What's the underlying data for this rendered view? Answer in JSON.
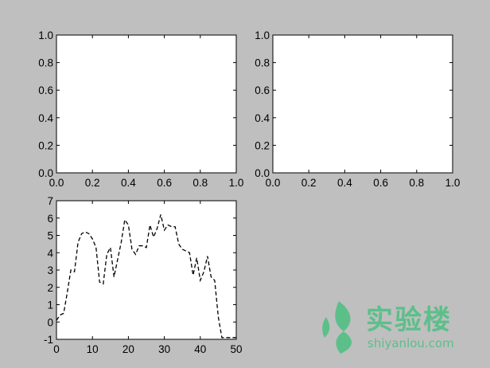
{
  "chart_data": [
    {
      "type": "line",
      "subplot": "top-left",
      "xlim": [
        0,
        1
      ],
      "ylim": [
        0,
        1
      ],
      "xticks": [
        "0.0",
        "0.2",
        "0.4",
        "0.6",
        "0.8",
        "1.0"
      ],
      "yticks": [
        "0.0",
        "0.2",
        "0.4",
        "0.6",
        "0.8",
        "1.0"
      ],
      "series": []
    },
    {
      "type": "line",
      "subplot": "top-right",
      "xlim": [
        0,
        1
      ],
      "ylim": [
        0,
        1
      ],
      "xticks": [
        "0.0",
        "0.2",
        "0.4",
        "0.6",
        "0.8",
        "1.0"
      ],
      "yticks": [
        "0.0",
        "0.2",
        "0.4",
        "0.6",
        "0.8",
        "1.0"
      ],
      "series": []
    },
    {
      "type": "line",
      "subplot": "bottom-left",
      "xlim": [
        0,
        50
      ],
      "ylim": [
        -1,
        7
      ],
      "xticks": [
        "0",
        "10",
        "20",
        "30",
        "40",
        "50"
      ],
      "yticks": [
        "-1",
        "0",
        "1",
        "2",
        "3",
        "4",
        "5",
        "6",
        "7"
      ],
      "line_style": "dashed",
      "line_color": "#000000",
      "series": [
        {
          "x": [
            0,
            1,
            2,
            3,
            4,
            5,
            6,
            7,
            8,
            9,
            10,
            11,
            12,
            13,
            14,
            15,
            16,
            17,
            18,
            19,
            20,
            21,
            22,
            23,
            24,
            25,
            26,
            27,
            28,
            29,
            30,
            31,
            32,
            33,
            34,
            35,
            36,
            37,
            38,
            39,
            40,
            41,
            42,
            43,
            44,
            45,
            46,
            47,
            48,
            49,
            50
          ],
          "values": [
            0.1,
            0.4,
            0.5,
            1.7,
            3.0,
            2.9,
            4.6,
            5.1,
            5.2,
            5.1,
            4.8,
            4.3,
            2.3,
            2.2,
            3.9,
            4.3,
            2.6,
            3.6,
            4.6,
            5.9,
            5.6,
            4.2,
            3.9,
            4.4,
            4.4,
            4.3,
            5.6,
            4.9,
            5.4,
            6.2,
            5.3,
            5.6,
            5.5,
            5.5,
            4.5,
            4.2,
            4.1,
            4.0,
            2.7,
            3.7,
            2.4,
            2.9,
            3.8,
            2.6,
            2.4,
            0.3,
            -0.9,
            -0.9,
            -0.9,
            -0.9,
            -0.9
          ]
        }
      ]
    }
  ],
  "watermark": {
    "icon": "shiyanlou-leaf-logo",
    "title": "实验楼",
    "url": "shiyanlou.com",
    "color": "#5cbf8a"
  }
}
